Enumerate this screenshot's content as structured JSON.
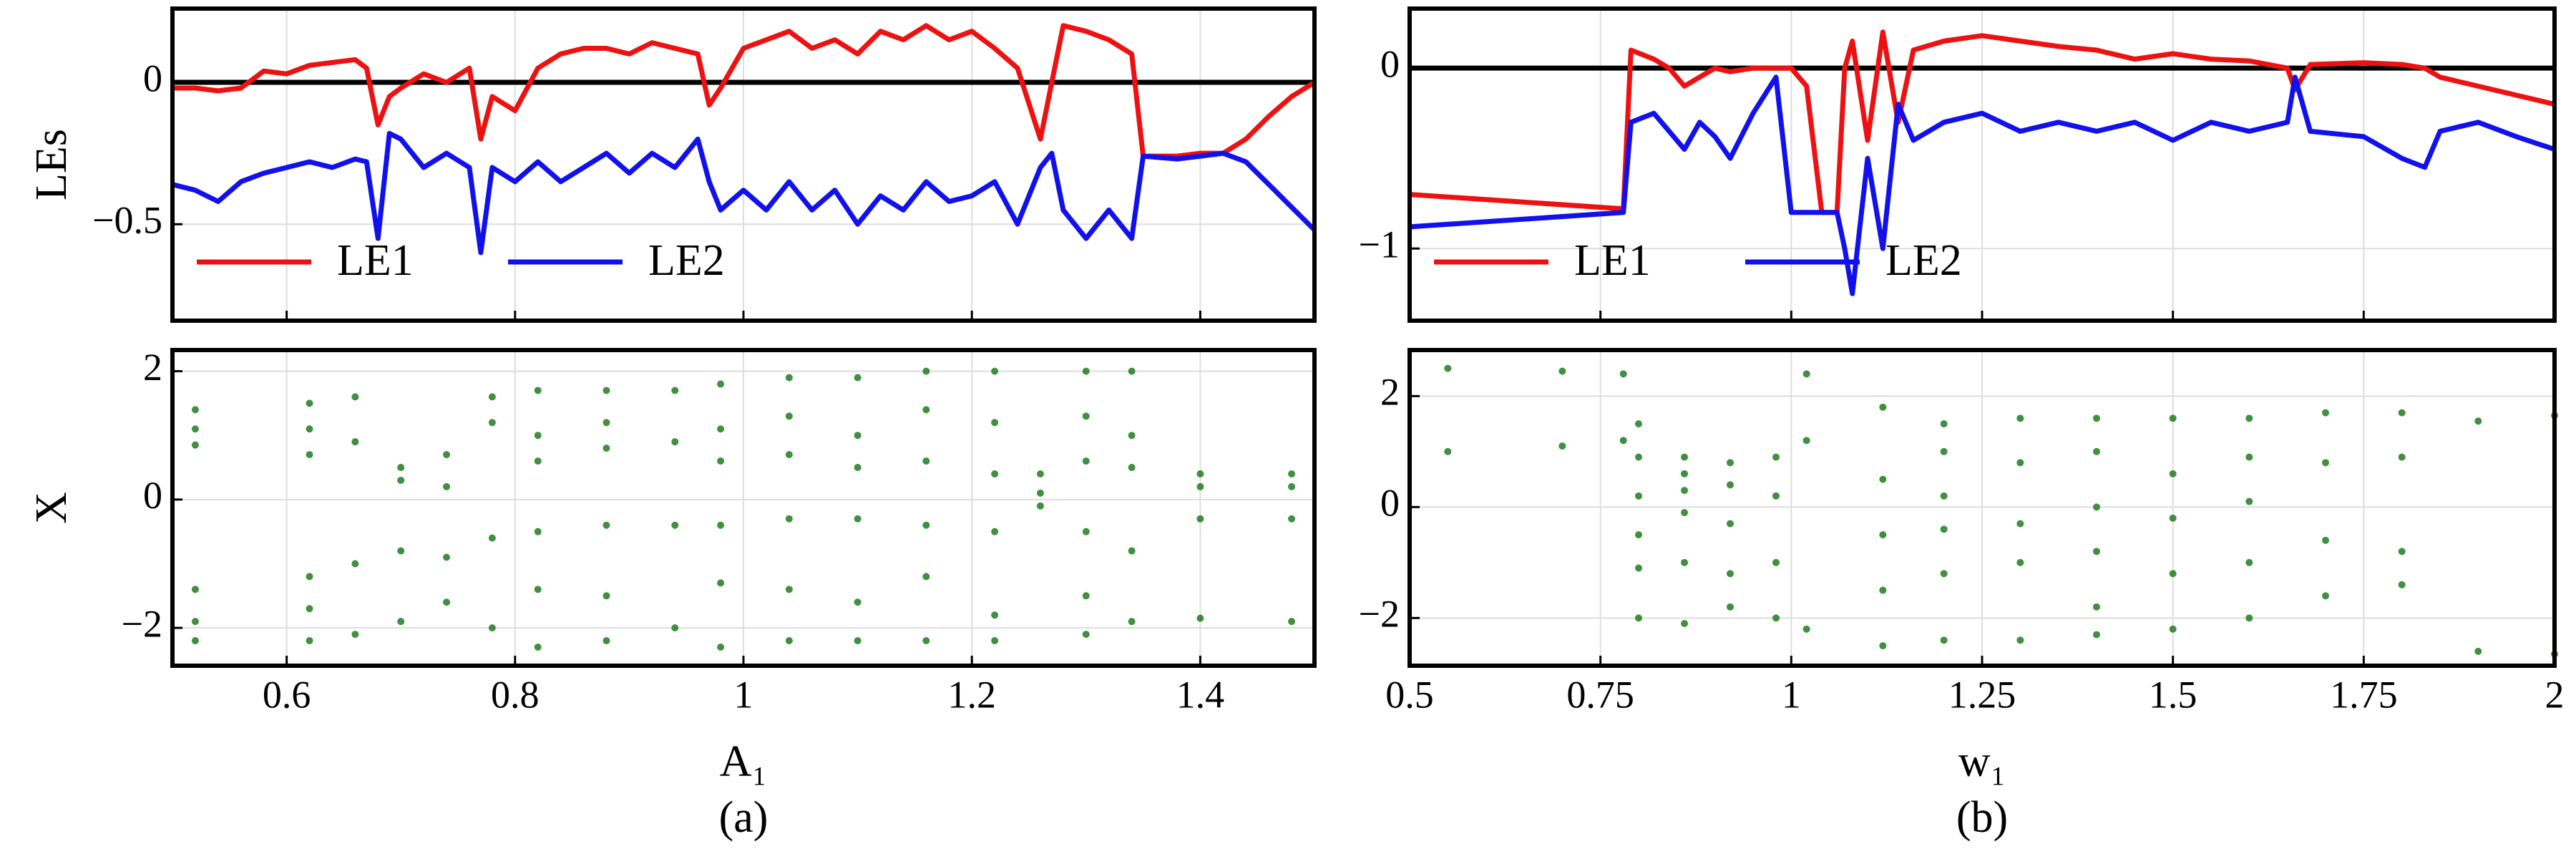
{
  "chart_data": [
    {
      "type": "line",
      "ylabel": "LEs",
      "xlim": [
        0.5,
        1.5
      ],
      "ylim": [
        -0.84,
        0.26
      ],
      "xticks": [
        0.6,
        0.8,
        1,
        1.2,
        1.4
      ],
      "xtick_labels": false,
      "yticks": [
        0,
        {
          "value": -0.5,
          "label": "−0.5"
        }
      ],
      "grid": true,
      "hline": 0,
      "legend": "lower left",
      "x": [
        0.5,
        0.52,
        0.54,
        0.56,
        0.58,
        0.6,
        0.62,
        0.64,
        0.66,
        0.67,
        0.68,
        0.69,
        0.7,
        0.72,
        0.74,
        0.76,
        0.77,
        0.78,
        0.8,
        0.82,
        0.84,
        0.86,
        0.88,
        0.9,
        0.92,
        0.94,
        0.96,
        0.97,
        0.98,
        1.0,
        1.02,
        1.04,
        1.06,
        1.08,
        1.1,
        1.12,
        1.14,
        1.16,
        1.18,
        1.2,
        1.22,
        1.24,
        1.26,
        1.27,
        1.28,
        1.3,
        1.32,
        1.34,
        1.35,
        1.38,
        1.4,
        1.42,
        1.44,
        1.46,
        1.48,
        1.5
      ],
      "series": [
        {
          "name": "LE1",
          "color": "#ee1111",
          "values": [
            -0.02,
            -0.02,
            -0.03,
            -0.02,
            0.04,
            0.03,
            0.06,
            0.07,
            0.08,
            0.05,
            -0.15,
            -0.05,
            -0.02,
            0.03,
            0.0,
            0.05,
            -0.2,
            -0.05,
            -0.1,
            0.05,
            0.1,
            0.12,
            0.12,
            0.1,
            0.14,
            0.12,
            0.1,
            -0.08,
            -0.02,
            0.12,
            0.15,
            0.18,
            0.12,
            0.15,
            0.1,
            0.18,
            0.15,
            0.2,
            0.15,
            0.18,
            0.12,
            0.05,
            -0.2,
            0.0,
            0.2,
            0.18,
            0.15,
            0.1,
            -0.26,
            -0.26,
            -0.25,
            -0.25,
            -0.2,
            -0.12,
            -0.05,
            0.0
          ]
        },
        {
          "name": "LE2",
          "color": "#1111ee",
          "values": [
            -0.36,
            -0.38,
            -0.42,
            -0.35,
            -0.32,
            -0.3,
            -0.28,
            -0.3,
            -0.27,
            -0.28,
            -0.55,
            -0.18,
            -0.2,
            -0.3,
            -0.25,
            -0.3,
            -0.6,
            -0.3,
            -0.35,
            -0.28,
            -0.35,
            -0.3,
            -0.25,
            -0.32,
            -0.25,
            -0.3,
            -0.2,
            -0.35,
            -0.45,
            -0.38,
            -0.45,
            -0.35,
            -0.45,
            -0.38,
            -0.5,
            -0.4,
            -0.45,
            -0.35,
            -0.42,
            -0.4,
            -0.35,
            -0.5,
            -0.3,
            -0.25,
            -0.45,
            -0.55,
            -0.45,
            -0.55,
            -0.26,
            -0.27,
            -0.26,
            -0.25,
            -0.28,
            -0.36,
            -0.44,
            -0.52
          ]
        }
      ]
    },
    {
      "type": "scatter",
      "ylabel": "X",
      "xlabel": "A₁",
      "caption": "(a)",
      "xlim": [
        0.5,
        1.5
      ],
      "ylim": [
        -2.59,
        2.33
      ],
      "xticks": [
        0.6,
        0.8,
        1,
        1.2,
        1.4
      ],
      "yticks": [
        2,
        0,
        {
          "value": -2,
          "label": "−2"
        }
      ],
      "grid": true,
      "color": "#1e7d1e",
      "x": [
        0.52,
        0.52,
        0.52,
        0.52,
        0.52,
        0.52,
        0.62,
        0.62,
        0.62,
        0.62,
        0.62,
        0.62,
        0.66,
        0.66,
        0.66,
        0.66,
        0.7,
        0.7,
        0.7,
        0.7,
        0.74,
        0.74,
        0.74,
        0.74,
        0.78,
        0.78,
        0.78,
        0.78,
        0.82,
        0.82,
        0.82,
        0.82,
        0.82,
        0.82,
        0.88,
        0.88,
        0.88,
        0.88,
        0.88,
        0.88,
        0.94,
        0.94,
        0.94,
        0.94,
        0.98,
        0.98,
        0.98,
        0.98,
        0.98,
        0.98,
        1.04,
        1.04,
        1.04,
        1.04,
        1.04,
        1.04,
        1.1,
        1.1,
        1.1,
        1.1,
        1.1,
        1.1,
        1.16,
        1.16,
        1.16,
        1.16,
        1.16,
        1.16,
        1.22,
        1.22,
        1.22,
        1.22,
        1.22,
        1.22,
        1.26,
        1.26,
        1.26,
        1.3,
        1.3,
        1.3,
        1.3,
        1.3,
        1.3,
        1.34,
        1.34,
        1.34,
        1.34,
        1.34,
        1.4,
        1.4,
        1.4,
        1.4,
        1.48,
        1.48,
        1.48,
        1.48
      ],
      "y": [
        1.4,
        1.1,
        0.85,
        -1.4,
        -1.9,
        -2.2,
        1.5,
        1.1,
        0.7,
        -1.2,
        -1.7,
        -2.2,
        1.6,
        0.9,
        -1.0,
        -2.1,
        0.5,
        0.3,
        -0.8,
        -1.9,
        0.7,
        0.2,
        -0.9,
        -1.6,
        1.6,
        1.2,
        -0.6,
        -2.0,
        1.7,
        1.0,
        0.6,
        -0.5,
        -1.4,
        -2.3,
        1.7,
        1.2,
        0.8,
        -0.4,
        -1.5,
        -2.2,
        1.7,
        0.9,
        -0.4,
        -2.0,
        1.8,
        1.1,
        0.6,
        -0.4,
        -1.3,
        -2.3,
        1.9,
        1.3,
        0.7,
        -0.3,
        -1.4,
        -2.2,
        1.9,
        1.0,
        0.5,
        -0.3,
        -1.6,
        -2.2,
        2.0,
        1.4,
        0.6,
        -0.4,
        -1.2,
        -2.2,
        2.0,
        1.2,
        0.4,
        -0.5,
        -1.8,
        -2.2,
        0.4,
        0.1,
        -0.1,
        2.0,
        1.3,
        0.6,
        -0.5,
        -1.5,
        -2.1,
        2.0,
        1.0,
        0.5,
        -0.8,
        -1.9,
        0.4,
        0.2,
        -0.3,
        -1.85,
        0.4,
        0.2,
        -0.3,
        -1.9
      ]
    },
    {
      "type": "line",
      "xlim": [
        0.5,
        2
      ],
      "ylim": [
        -1.4,
        0.33
      ],
      "xticks": [
        0.5,
        0.75,
        1,
        1.25,
        1.5,
        1.75,
        2
      ],
      "xtick_labels": false,
      "yticks": [
        0,
        {
          "value": -1,
          "label": "−1"
        }
      ],
      "grid": true,
      "hline": 0,
      "legend": "lower left",
      "x": [
        0.5,
        0.78,
        0.79,
        0.82,
        0.84,
        0.86,
        0.88,
        0.9,
        0.92,
        0.95,
        0.98,
        1.0,
        1.02,
        1.04,
        1.06,
        1.07,
        1.08,
        1.1,
        1.12,
        1.14,
        1.16,
        1.2,
        1.25,
        1.3,
        1.35,
        1.4,
        1.45,
        1.5,
        1.55,
        1.6,
        1.65,
        1.66,
        1.68,
        1.75,
        1.8,
        1.83,
        1.85,
        1.9,
        1.95,
        2.0
      ],
      "series": [
        {
          "name": "LE1",
          "color": "#ee1111",
          "values": [
            -0.7,
            -0.78,
            0.1,
            0.05,
            0.0,
            -0.1,
            -0.05,
            0.0,
            -0.02,
            0.0,
            0.0,
            0.0,
            -0.1,
            -0.8,
            -0.8,
            0.0,
            0.15,
            -0.4,
            0.2,
            -0.3,
            0.1,
            0.15,
            0.18,
            0.15,
            0.12,
            0.1,
            0.05,
            0.08,
            0.05,
            0.04,
            0.0,
            -0.12,
            0.02,
            0.03,
            0.02,
            0.0,
            -0.05,
            -0.1,
            -0.15,
            -0.2
          ]
        },
        {
          "name": "LE2",
          "color": "#1111ee",
          "values": [
            -0.88,
            -0.8,
            -0.3,
            -0.25,
            -0.35,
            -0.45,
            -0.3,
            -0.38,
            -0.5,
            -0.25,
            -0.05,
            -0.8,
            -0.8,
            -0.8,
            -0.8,
            -1.0,
            -1.25,
            -0.5,
            -1.0,
            -0.2,
            -0.4,
            -0.3,
            -0.25,
            -0.35,
            -0.3,
            -0.35,
            -0.3,
            -0.4,
            -0.3,
            -0.35,
            -0.3,
            -0.05,
            -0.35,
            -0.38,
            -0.5,
            -0.55,
            -0.35,
            -0.3,
            -0.38,
            -0.45
          ]
        }
      ]
    },
    {
      "type": "scatter",
      "xlabel": "w₁",
      "caption": "(b)",
      "xlim": [
        0.5,
        2
      ],
      "ylim": [
        -2.86,
        2.83
      ],
      "xticks": [
        0.5,
        0.75,
        1,
        1.25,
        1.5,
        1.75,
        2
      ],
      "yticks": [
        2,
        0,
        {
          "value": -2,
          "label": "−2"
        }
      ],
      "grid": true,
      "color": "#1e7d1e",
      "x": [
        0.55,
        0.55,
        0.7,
        0.7,
        0.78,
        0.78,
        0.8,
        0.8,
        0.8,
        0.8,
        0.8,
        0.8,
        0.86,
        0.86,
        0.86,
        0.86,
        0.86,
        0.86,
        0.92,
        0.92,
        0.92,
        0.92,
        0.92,
        0.98,
        0.98,
        0.98,
        0.98,
        1.02,
        1.02,
        1.02,
        1.12,
        1.12,
        1.12,
        1.12,
        1.12,
        1.2,
        1.2,
        1.2,
        1.2,
        1.2,
        1.2,
        1.3,
        1.3,
        1.3,
        1.3,
        1.3,
        1.4,
        1.4,
        1.4,
        1.4,
        1.4,
        1.4,
        1.5,
        1.5,
        1.5,
        1.5,
        1.5,
        1.6,
        1.6,
        1.6,
        1.6,
        1.6,
        1.7,
        1.7,
        1.7,
        1.7,
        1.8,
        1.8,
        1.8,
        1.8,
        1.9,
        1.9,
        2.0,
        2.0
      ],
      "y": [
        2.5,
        1.0,
        2.45,
        1.1,
        2.4,
        1.2,
        1.5,
        0.9,
        0.2,
        -0.5,
        -1.1,
        -2.0,
        0.9,
        0.3,
        -0.1,
        -1.0,
        -2.1,
        0.6,
        0.8,
        0.4,
        -0.3,
        -1.2,
        -1.8,
        0.9,
        0.2,
        -1.0,
        -2.0,
        2.4,
        1.2,
        -2.2,
        1.8,
        0.5,
        -0.5,
        -1.5,
        -2.5,
        1.5,
        1.0,
        0.2,
        -0.4,
        -1.2,
        -2.4,
        1.6,
        0.8,
        -0.3,
        -1.0,
        -2.4,
        1.6,
        1.0,
        0.0,
        -0.8,
        -1.8,
        -2.3,
        1.6,
        0.6,
        -0.2,
        -1.2,
        -2.2,
        1.6,
        0.9,
        0.1,
        -1.0,
        -2.0,
        1.7,
        0.8,
        -0.6,
        -1.6,
        1.7,
        0.9,
        -0.8,
        -1.4,
        1.55,
        -2.6,
        1.65,
        -2.65
      ]
    }
  ]
}
